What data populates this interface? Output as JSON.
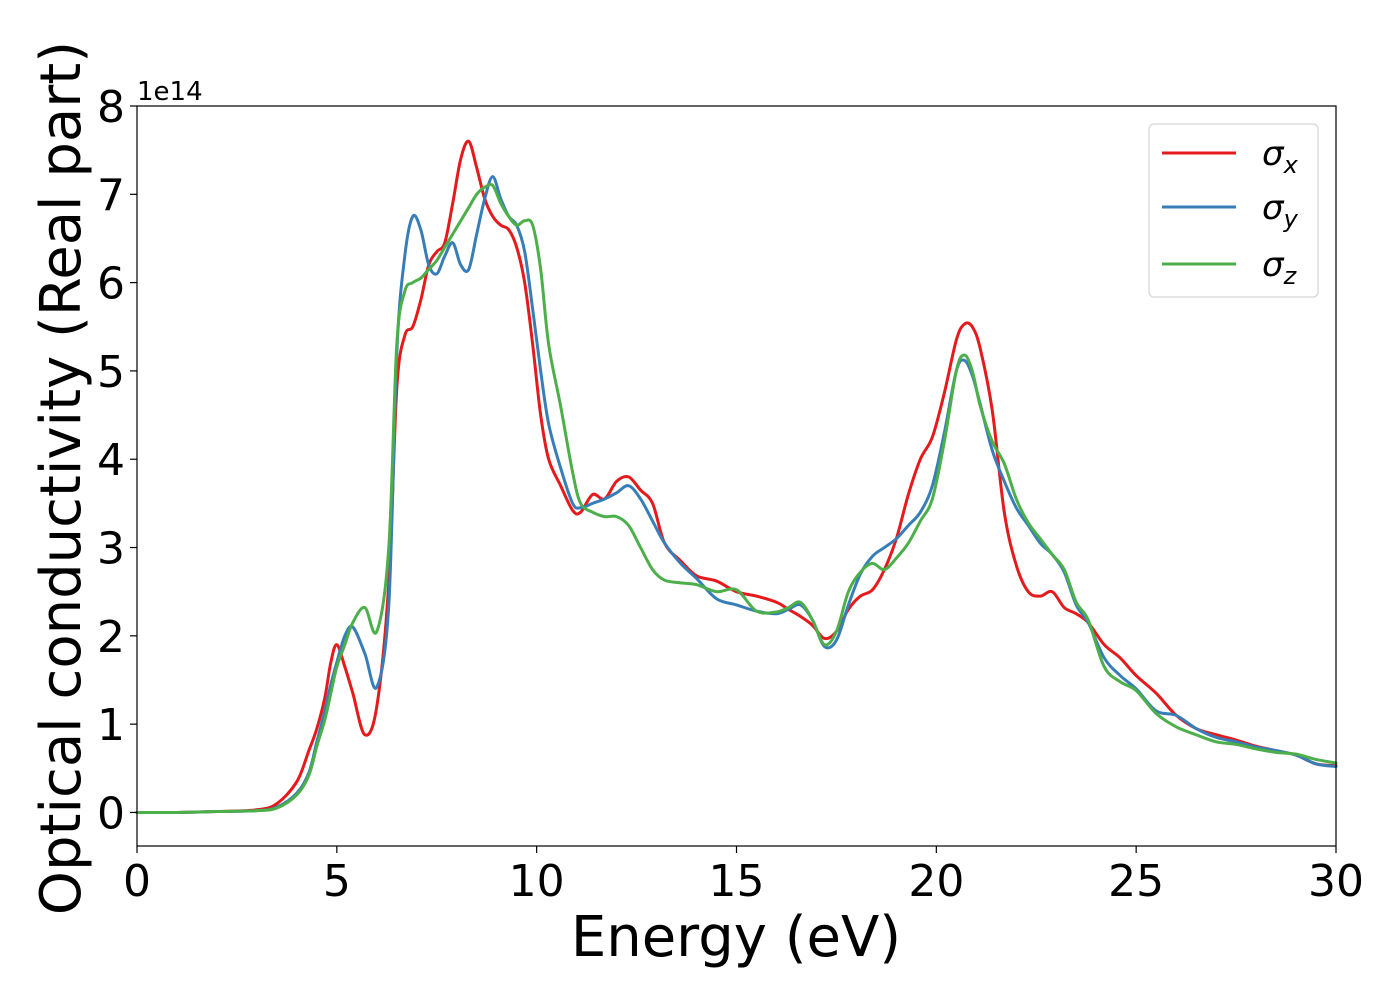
{
  "chart_data": {
    "type": "line",
    "xlabel": "Energy (eV)",
    "ylabel": "Optical conductivity (Real part)",
    "y_multiplier_label": "1e14",
    "xlim": [
      0,
      30
    ],
    "ylim": [
      -0.38,
      8
    ],
    "x_ticks": [
      0,
      5,
      10,
      15,
      20,
      25,
      30
    ],
    "y_ticks": [
      0,
      1,
      2,
      3,
      4,
      5,
      6,
      7,
      8
    ],
    "grid": false,
    "legend_position": "top-right",
    "x": [
      0,
      1,
      2,
      3,
      3.5,
      4,
      4.3,
      4.5,
      4.7,
      4.85,
      5.0,
      5.2,
      5.4,
      5.7,
      6.0,
      6.3,
      6.5,
      6.7,
      6.9,
      7.1,
      7.3,
      7.5,
      7.7,
      7.9,
      8.1,
      8.3,
      8.5,
      8.7,
      8.9,
      9.1,
      9.3,
      9.5,
      9.7,
      9.9,
      10.1,
      10.3,
      10.6,
      10.9,
      11.1,
      11.4,
      11.7,
      12.0,
      12.3,
      12.6,
      12.9,
      13.2,
      13.6,
      14.0,
      14.5,
      15.0,
      15.5,
      16.0,
      16.3,
      16.6,
      16.9,
      17.2,
      17.5,
      17.8,
      18.1,
      18.4,
      18.7,
      19.0,
      19.3,
      19.6,
      19.9,
      20.2,
      20.5,
      20.7,
      20.9,
      21.1,
      21.4,
      21.7,
      22.0,
      22.3,
      22.6,
      22.9,
      23.2,
      23.5,
      23.8,
      24.2,
      24.6,
      25.0,
      25.5,
      26.0,
      26.5,
      27.0,
      27.5,
      28.0,
      28.5,
      29.0,
      29.5,
      30.0
    ],
    "series": [
      {
        "name": "σx",
        "color": "#e41a1c",
        "values": [
          0,
          0,
          0.01,
          0.03,
          0.1,
          0.35,
          0.7,
          0.95,
          1.3,
          1.7,
          1.9,
          1.65,
          1.35,
          0.88,
          1.2,
          2.6,
          4.8,
          5.4,
          5.5,
          5.8,
          6.2,
          6.35,
          6.45,
          6.9,
          7.4,
          7.6,
          7.3,
          6.95,
          6.75,
          6.65,
          6.6,
          6.4,
          6.0,
          5.3,
          4.5,
          4.0,
          3.7,
          3.42,
          3.4,
          3.6,
          3.55,
          3.75,
          3.8,
          3.65,
          3.5,
          3.05,
          2.85,
          2.68,
          2.62,
          2.5,
          2.45,
          2.38,
          2.3,
          2.22,
          2.12,
          1.97,
          2.05,
          2.3,
          2.45,
          2.52,
          2.75,
          3.1,
          3.6,
          4.0,
          4.25,
          4.75,
          5.35,
          5.53,
          5.5,
          5.25,
          4.55,
          3.4,
          2.8,
          2.5,
          2.45,
          2.5,
          2.32,
          2.25,
          2.15,
          1.9,
          1.75,
          1.55,
          1.35,
          1.1,
          0.95,
          0.88,
          0.82,
          0.75,
          0.7,
          0.65,
          0.55,
          0.53
        ]
      },
      {
        "name": "σy",
        "color": "#377eb8",
        "values": [
          0,
          0,
          0.01,
          0.02,
          0.06,
          0.22,
          0.45,
          0.8,
          1.15,
          1.45,
          1.7,
          2.0,
          2.1,
          1.8,
          1.42,
          2.35,
          5.2,
          6.3,
          6.75,
          6.6,
          6.2,
          6.1,
          6.3,
          6.45,
          6.2,
          6.15,
          6.55,
          6.95,
          7.2,
          6.95,
          6.75,
          6.65,
          6.35,
          5.7,
          5.0,
          4.4,
          3.9,
          3.5,
          3.45,
          3.5,
          3.55,
          3.62,
          3.7,
          3.55,
          3.3,
          3.05,
          2.82,
          2.65,
          2.42,
          2.35,
          2.28,
          2.25,
          2.3,
          2.35,
          2.18,
          1.88,
          1.95,
          2.35,
          2.7,
          2.9,
          3.0,
          3.1,
          3.25,
          3.4,
          3.7,
          4.3,
          5.0,
          5.12,
          4.95,
          4.62,
          4.1,
          3.75,
          3.45,
          3.25,
          3.05,
          2.92,
          2.72,
          2.35,
          2.15,
          1.75,
          1.55,
          1.4,
          1.15,
          1.1,
          0.95,
          0.85,
          0.8,
          0.74,
          0.7,
          0.65,
          0.55,
          0.52
        ]
      },
      {
        "name": "σz",
        "color": "#4daf4a",
        "values": [
          0,
          0,
          0.01,
          0.02,
          0.05,
          0.2,
          0.42,
          0.75,
          1.05,
          1.35,
          1.65,
          1.9,
          2.15,
          2.32,
          2.05,
          3.0,
          5.3,
          5.9,
          6.0,
          6.05,
          6.15,
          6.25,
          6.4,
          6.55,
          6.7,
          6.85,
          7.0,
          7.08,
          7.1,
          6.9,
          6.75,
          6.65,
          6.7,
          6.65,
          6.15,
          5.3,
          4.6,
          3.85,
          3.5,
          3.4,
          3.35,
          3.35,
          3.25,
          3.0,
          2.75,
          2.63,
          2.6,
          2.58,
          2.5,
          2.52,
          2.28,
          2.27,
          2.32,
          2.38,
          2.18,
          1.9,
          2.05,
          2.5,
          2.72,
          2.82,
          2.75,
          2.88,
          3.05,
          3.3,
          3.55,
          4.2,
          5.0,
          5.18,
          5.0,
          4.6,
          4.2,
          3.95,
          3.55,
          3.28,
          3.1,
          2.92,
          2.75,
          2.38,
          2.18,
          1.65,
          1.48,
          1.38,
          1.12,
          0.97,
          0.88,
          0.8,
          0.77,
          0.72,
          0.68,
          0.66,
          0.6,
          0.56
        ]
      }
    ]
  }
}
